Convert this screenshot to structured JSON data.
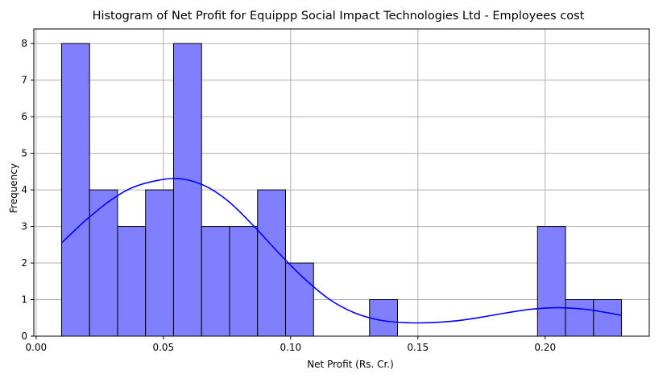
{
  "chart_data": {
    "type": "bar",
    "title": "Histogram of Net Profit for Equippp Social Impact Technologies Ltd - Employees cost",
    "xlabel": "Net Profit (Rs. Cr.)",
    "ylabel": "Frequency",
    "xlim": [
      -0.0009,
      0.2409
    ],
    "ylim": [
      0,
      8.4
    ],
    "xticks": [
      0.0,
      0.05,
      0.1,
      0.15,
      0.2
    ],
    "xtick_labels": [
      "0.00",
      "0.05",
      "0.10",
      "0.15",
      "0.20"
    ],
    "yticks": [
      0,
      1,
      2,
      3,
      4,
      5,
      6,
      7,
      8
    ],
    "ytick_labels": [
      "0",
      "1",
      "2",
      "3",
      "4",
      "5",
      "6",
      "7",
      "8"
    ],
    "grid": true,
    "bin_edges": [
      0.01,
      0.021,
      0.032,
      0.043,
      0.054,
      0.065,
      0.076,
      0.087,
      0.098,
      0.109,
      0.12,
      0.131,
      0.142,
      0.153,
      0.164,
      0.175,
      0.186,
      0.197,
      0.208,
      0.219,
      0.23
    ],
    "values": [
      8,
      4,
      3,
      4,
      8,
      3,
      3,
      4,
      2,
      0,
      0,
      1,
      0,
      0,
      0,
      0,
      0,
      3,
      1,
      1
    ],
    "bar_color": "#8080ff",
    "edge_color": "#000000",
    "kde": {
      "color": "#0000ff",
      "points": [
        [
          0.01,
          2.55
        ],
        [
          0.02,
          3.2
        ],
        [
          0.03,
          3.75
        ],
        [
          0.04,
          4.12
        ],
        [
          0.054,
          4.31
        ],
        [
          0.065,
          4.15
        ],
        [
          0.075,
          3.72
        ],
        [
          0.085,
          3.05
        ],
        [
          0.095,
          2.3
        ],
        [
          0.105,
          1.6
        ],
        [
          0.115,
          1.02
        ],
        [
          0.125,
          0.64
        ],
        [
          0.135,
          0.44
        ],
        [
          0.145,
          0.37
        ],
        [
          0.155,
          0.37
        ],
        [
          0.165,
          0.42
        ],
        [
          0.175,
          0.52
        ],
        [
          0.185,
          0.64
        ],
        [
          0.195,
          0.74
        ],
        [
          0.205,
          0.78
        ],
        [
          0.215,
          0.74
        ],
        [
          0.223,
          0.66
        ],
        [
          0.23,
          0.57
        ]
      ]
    }
  }
}
